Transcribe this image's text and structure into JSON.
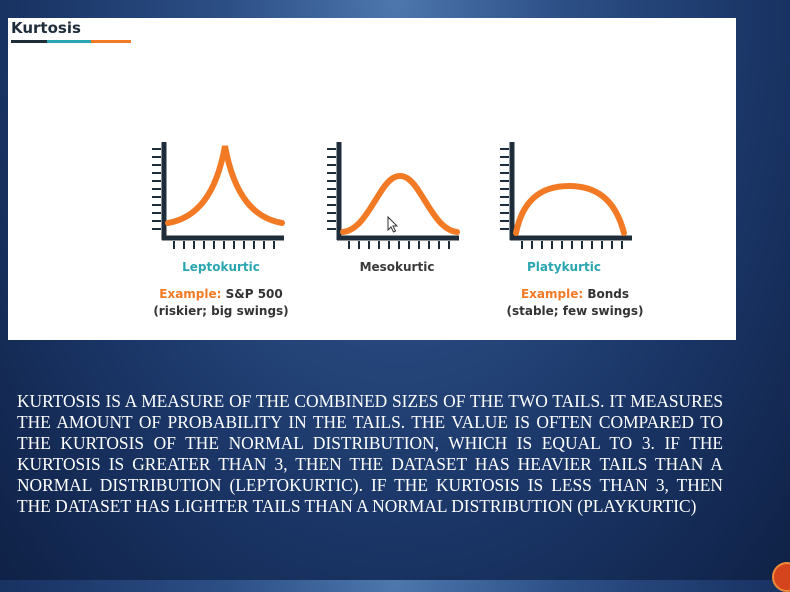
{
  "slide": {
    "title": "Kurtosis",
    "colors": {
      "accent_orange": "#f37a24",
      "accent_teal": "#2aa6b0",
      "axis_dark": "#1f2d3a"
    },
    "curves": [
      {
        "name": "Leptokurtic",
        "example_key": "Example:",
        "example_value": " S&P 500",
        "example_note": "(riskier; big swings)",
        "label_color": "#2aa6b0"
      },
      {
        "name": "Mesokurtic",
        "label_color": "#3a3a3a"
      },
      {
        "name": "Platykurtic",
        "example_key": "Example:",
        "example_value": " Bonds",
        "example_note": "(stable; few swings)",
        "label_color": "#2aa6b0"
      }
    ],
    "description": "Kurtosis is a measure of the combined sizes of the two tails.  It measures the amount of probability in the tails.  The value is often compared to the kurtosis of the normal distribution, which is equal to 3.  If the kurtosis is greater than 3, then the dataset has heavier tails than a normal distribution (leptokurtic).  If the kurtosis is less than 3, then the dataset has lighter tails than a normal distribution (playkurtic)"
  }
}
